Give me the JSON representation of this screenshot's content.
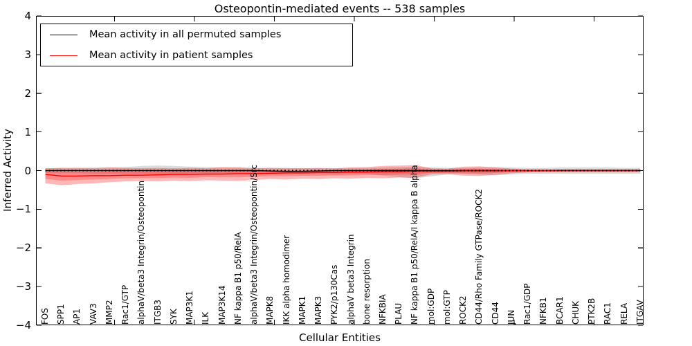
{
  "chart_data": {
    "type": "line",
    "title": "Osteopontin-mediated events -- 538 samples",
    "xlabel": "Cellular Entities",
    "ylabel": "Inferred Activity",
    "ylim": [
      -4,
      4
    ],
    "yticks": [
      4,
      3,
      2,
      1,
      0,
      -1,
      -2,
      -3,
      -4
    ],
    "grid": false,
    "legend_position": "upper left",
    "legend": [
      {
        "label": "Mean activity in all permuted samples",
        "color": "#000000"
      },
      {
        "label": "Mean activity in patient samples",
        "color": "#ff0000"
      }
    ],
    "categories": [
      "FOS",
      "SPP1",
      "AP1",
      "VAV3",
      "MMP2",
      "Rac1/GTP",
      "alphaV/beta3 Integrin/Osteopontin",
      "ITGB3",
      "SYK",
      "MAP3K1",
      "ILK",
      "MAP3K14",
      "NF kappa B1 p50/RelA",
      "alphaV/beta3 Integrin/Osteopontin/Src",
      "MAPK8",
      "IKK alpha homodimer",
      "MAPK1",
      "MAPK3",
      "PYK2/p130Cas",
      "alphaV beta3 Integrin",
      "bone resorption",
      "NFKBIA",
      "PLAU",
      "NF kappa B1 p50/RelA/I kappa B alpha",
      "mol:GDP",
      "mol:GTP",
      "ROCK2",
      "CD44/Rho Family GTPase/ROCK2",
      "CD44",
      "JUN",
      "Rac1/GDP",
      "NFKB1",
      "BCAR1",
      "CHUK",
      "PTK2B",
      "RAC1",
      "RELA",
      "ITGAV"
    ],
    "series": [
      {
        "name": "Mean activity in all permuted samples",
        "color": "#000000",
        "band_alpha": 0.14,
        "values": [
          0,
          0,
          0,
          0,
          0,
          0,
          0,
          0,
          0,
          0,
          0,
          0,
          0,
          0,
          -0.01,
          -0.02,
          -0.02,
          -0.01,
          0,
          0,
          0,
          0,
          0,
          0,
          0,
          0,
          0,
          0,
          0,
          0,
          0,
          0,
          0,
          0,
          0,
          0,
          0,
          0
        ],
        "band_upper": [
          0.06,
          0.07,
          0.07,
          0.08,
          0.08,
          0.09,
          0.12,
          0.13,
          0.12,
          0.1,
          0.09,
          0.08,
          0.08,
          0.07,
          0.07,
          0.07,
          0.06,
          0.06,
          0.06,
          0.07,
          0.07,
          0.08,
          0.09,
          0.1,
          0.08,
          0.07,
          0.07,
          0.08,
          0.09,
          0.08,
          0.07,
          0.07,
          0.08,
          0.08,
          0.08,
          0.08,
          0.07,
          0.07
        ],
        "band_lower": [
          -0.06,
          -0.07,
          -0.07,
          -0.08,
          -0.08,
          -0.08,
          -0.09,
          -0.1,
          -0.09,
          -0.09,
          -0.08,
          -0.08,
          -0.09,
          -0.08,
          -0.08,
          -0.08,
          -0.08,
          -0.09,
          -0.1,
          -0.09,
          -0.08,
          -0.13,
          -0.17,
          -0.2,
          -0.15,
          -0.1,
          -0.08,
          -0.1,
          -0.12,
          -0.1,
          -0.08,
          -0.08,
          -0.08,
          -0.08,
          -0.08,
          -0.08,
          -0.08,
          -0.08
        ]
      },
      {
        "name": "Mean activity in patient samples",
        "color": "#ff0000",
        "band_alpha": 0.28,
        "values": [
          -0.1,
          -0.14,
          -0.14,
          -0.13,
          -0.13,
          -0.12,
          -0.12,
          -0.11,
          -0.1,
          -0.1,
          -0.09,
          -0.09,
          -0.08,
          -0.08,
          -0.07,
          -0.06,
          -0.06,
          -0.05,
          -0.05,
          -0.04,
          -0.04,
          -0.03,
          -0.03,
          -0.02,
          -0.02,
          -0.02,
          -0.01,
          -0.01,
          -0.01,
          0,
          0,
          0,
          0.01,
          0.01,
          0.01,
          0.01,
          0.01,
          0.01
        ],
        "band_upper": [
          0.06,
          0.07,
          0.07,
          0.06,
          0.08,
          0.07,
          0.06,
          0.07,
          0.06,
          0.07,
          0.06,
          0.09,
          0.08,
          0.06,
          0.07,
          0.06,
          0.06,
          0.07,
          0.06,
          0.08,
          0.09,
          0.12,
          0.13,
          0.14,
          0.06,
          0.05,
          0.1,
          0.11,
          0.08,
          0.05,
          0.03,
          0.03,
          0.03,
          0.03,
          0.03,
          0.03,
          0.03,
          0.03
        ],
        "band_lower": [
          -0.33,
          -0.38,
          -0.35,
          -0.33,
          -0.3,
          -0.28,
          -0.27,
          -0.28,
          -0.26,
          -0.27,
          -0.25,
          -0.26,
          -0.27,
          -0.24,
          -0.22,
          -0.23,
          -0.21,
          -0.22,
          -0.2,
          -0.21,
          -0.19,
          -0.2,
          -0.18,
          -0.19,
          -0.1,
          -0.09,
          -0.13,
          -0.14,
          -0.11,
          -0.07,
          -0.05,
          -0.04,
          -0.04,
          -0.04,
          -0.04,
          -0.04,
          -0.04,
          -0.04
        ]
      }
    ],
    "zero_reference_line": {
      "y": 0,
      "style": "dotted",
      "color": "#000000"
    }
  }
}
